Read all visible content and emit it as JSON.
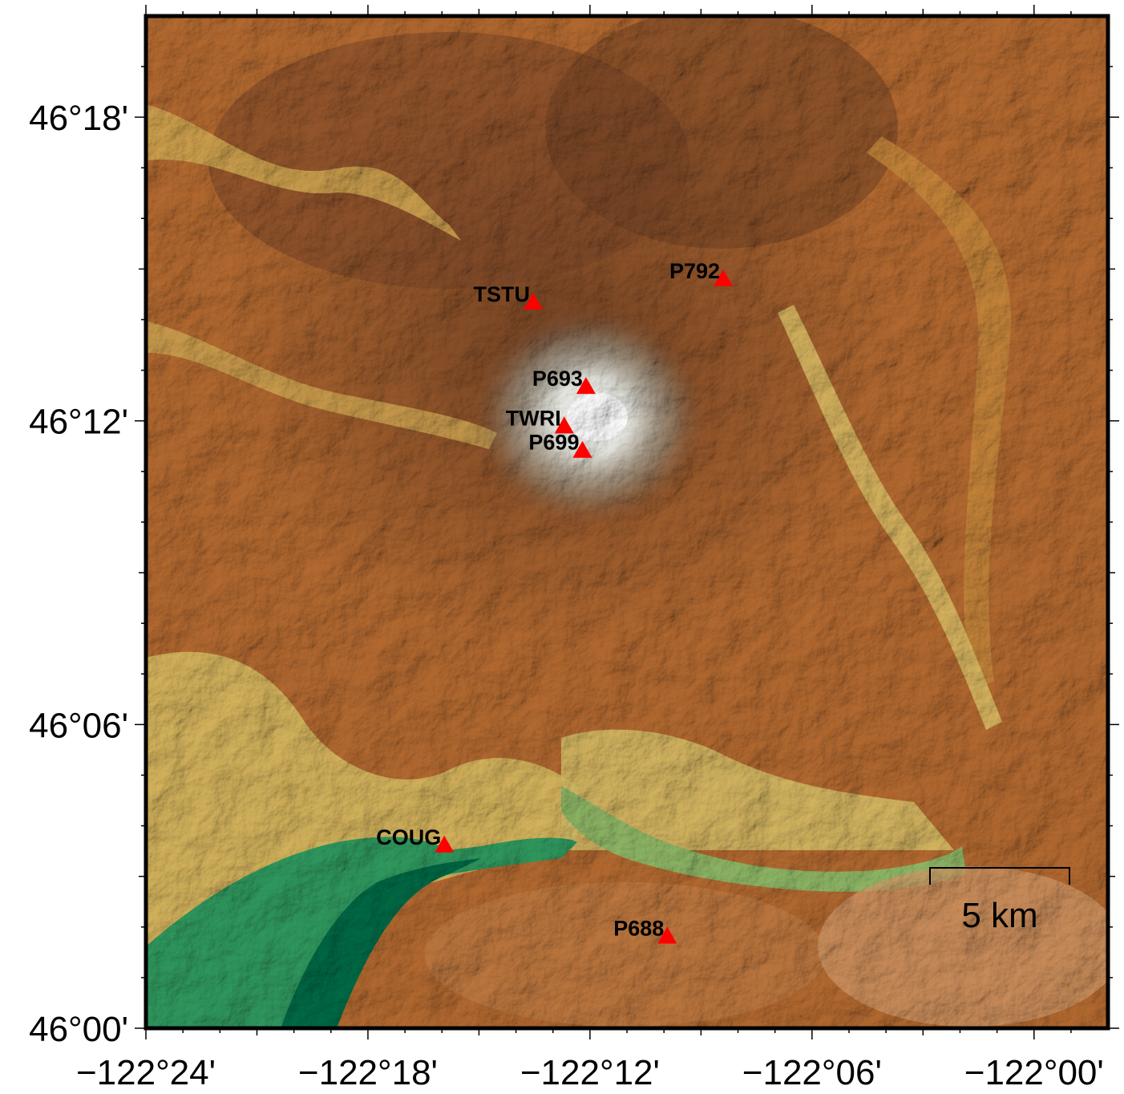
{
  "map": {
    "x_axis": {
      "range": [
        -122.4,
        -121.9667
      ],
      "major_ticks": [
        {
          "value": -122.4,
          "label": "−122°24'"
        },
        {
          "value": -122.3,
          "label": "−122°18'"
        },
        {
          "value": -122.2,
          "label": "−122°12'"
        },
        {
          "value": -122.1,
          "label": "−122°06'"
        },
        {
          "value": -122.0,
          "label": "−122°00'"
        }
      ]
    },
    "y_axis": {
      "range": [
        46.0,
        46.3333
      ],
      "major_ticks": [
        {
          "value": 46.0,
          "label": "46°00'"
        },
        {
          "value": 46.1,
          "label": "46°06'"
        },
        {
          "value": 46.2,
          "label": "46°12'"
        },
        {
          "value": 46.3,
          "label": "46°18'"
        }
      ]
    },
    "stations": [
      {
        "name": "TSTU",
        "lon": -122.2256,
        "lat": 46.2393,
        "color": "#ff0000"
      },
      {
        "name": "P792",
        "lon": -122.14,
        "lat": 46.247,
        "color": "#ff0000"
      },
      {
        "name": "P693",
        "lon": -122.2018,
        "lat": 46.2115,
        "color": "#ff0000"
      },
      {
        "name": "TWRI",
        "lon": -122.2116,
        "lat": 46.1985,
        "color": "#ff0000"
      },
      {
        "name": "P699",
        "lon": -122.2034,
        "lat": 46.1905,
        "color": "#ff0000"
      },
      {
        "name": "COUG",
        "lon": -122.2656,
        "lat": 46.0605,
        "color": "#ff0000"
      },
      {
        "name": "P688",
        "lon": -122.1652,
        "lat": 46.0305,
        "color": "#ff0000"
      }
    ],
    "scale_bar": {
      "label": "5 km",
      "length_km": 5,
      "placement": "bottom-right"
    },
    "colors": {
      "water": "#00704a",
      "lake": "#8fb866",
      "valley": "#e0c86a",
      "mid": "#b8652a",
      "high": "#6b3d22",
      "peak": "#f4f1ea",
      "marker": "#ff0000"
    }
  }
}
